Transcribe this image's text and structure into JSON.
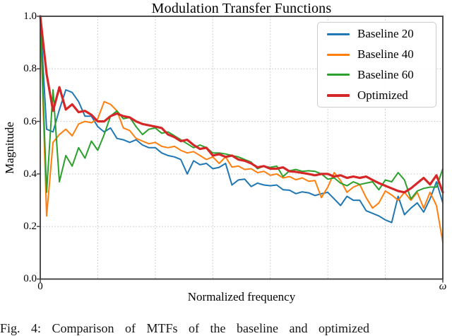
{
  "figure": {
    "title": "Modulation Transfer Functions",
    "xlabel": "Normalized frequency",
    "ylabel": "Magnitude",
    "caption": "Fig. 4: Comparison of MTFs of the baseline and optimized"
  },
  "axes": {
    "y_tick_labels": [
      "1.0",
      "0.8",
      "0.6",
      "0.4",
      "0.2",
      "0.0"
    ],
    "x_tick_labels": [
      "0",
      "ω"
    ]
  },
  "style_colors": {
    "background": "#ffffff",
    "spine": "#3b3b3b",
    "grid": "#c3c3c3",
    "text": "#000000",
    "legend_border": "#cccccc"
  },
  "chart_data": {
    "type": "line",
    "title": "Modulation Transfer Functions",
    "xlabel": "Normalized frequency",
    "ylabel": "Magnitude",
    "ylim": [
      0.0,
      1.0
    ],
    "y_ticks": [
      0.0,
      0.2,
      0.4,
      0.6,
      0.8,
      1.0
    ],
    "x_axis": {
      "min_label": "0",
      "max_label": "ω",
      "gridline_divisions": 7,
      "description": "64 evenly spaced normalized-frequency samples from 0 to ω"
    },
    "grid": "dotted",
    "legend_position": "upper right",
    "series": [
      {
        "name": "Baseline 20",
        "color": "#1f77b4",
        "line_width": 2,
        "values": [
          1.0,
          0.57,
          0.56,
          0.645,
          0.72,
          0.71,
          0.675,
          0.62,
          0.62,
          0.58,
          0.56,
          0.575,
          0.535,
          0.53,
          0.52,
          0.53,
          0.51,
          0.5,
          0.5,
          0.48,
          0.47,
          0.465,
          0.455,
          0.4,
          0.45,
          0.435,
          0.44,
          0.42,
          0.425,
          0.44,
          0.358,
          0.377,
          0.38,
          0.352,
          0.365,
          0.358,
          0.355,
          0.358,
          0.34,
          0.338,
          0.325,
          0.332,
          0.328,
          0.318,
          0.325,
          0.33,
          0.305,
          0.28,
          0.315,
          0.3,
          0.3,
          0.26,
          0.25,
          0.24,
          0.225,
          0.215,
          0.315,
          0.245,
          0.27,
          0.29,
          0.255,
          0.305,
          0.37,
          0.29
        ]
      },
      {
        "name": "Baseline 40",
        "color": "#ff7f0e",
        "line_width": 2,
        "values": [
          1.0,
          0.24,
          0.52,
          0.55,
          0.57,
          0.545,
          0.59,
          0.6,
          0.595,
          0.61,
          0.675,
          0.665,
          0.64,
          0.575,
          0.565,
          0.535,
          0.525,
          0.515,
          0.52,
          0.505,
          0.5,
          0.505,
          0.49,
          0.48,
          0.485,
          0.47,
          0.455,
          0.465,
          0.44,
          0.465,
          0.426,
          0.43,
          0.417,
          0.42,
          0.405,
          0.41,
          0.395,
          0.4,
          0.385,
          0.39,
          0.378,
          0.385,
          0.372,
          0.375,
          0.31,
          0.35,
          0.405,
          0.375,
          0.33,
          0.35,
          0.36,
          0.31,
          0.27,
          0.29,
          0.335,
          0.32,
          0.3,
          0.33,
          0.3,
          0.33,
          0.27,
          0.33,
          0.28,
          0.14
        ]
      },
      {
        "name": "Baseline 60",
        "color": "#2ca02c",
        "line_width": 2,
        "values": [
          1.0,
          0.33,
          0.72,
          0.37,
          0.47,
          0.43,
          0.5,
          0.46,
          0.525,
          0.49,
          0.55,
          0.62,
          0.64,
          0.61,
          0.615,
          0.58,
          0.55,
          0.57,
          0.575,
          0.555,
          0.56,
          0.545,
          0.53,
          0.515,
          0.5,
          0.51,
          0.5,
          0.48,
          0.48,
          0.476,
          0.47,
          0.465,
          0.455,
          0.445,
          0.42,
          0.43,
          0.425,
          0.43,
          0.39,
          0.412,
          0.417,
          0.41,
          0.412,
          0.41,
          0.4,
          0.38,
          0.385,
          0.365,
          0.355,
          0.37,
          0.36,
          0.365,
          0.37,
          0.34,
          0.377,
          0.37,
          0.405,
          0.377,
          0.305,
          0.335,
          0.345,
          0.35,
          0.35,
          0.42
        ]
      },
      {
        "name": "Optimized",
        "color": "#d62728",
        "line_width": 3.2,
        "values": [
          1.0,
          0.78,
          0.64,
          0.73,
          0.645,
          0.665,
          0.635,
          0.64,
          0.625,
          0.6,
          0.6,
          0.62,
          0.63,
          0.62,
          0.615,
          0.6,
          0.59,
          0.585,
          0.58,
          0.575,
          0.55,
          0.54,
          0.525,
          0.53,
          0.51,
          0.495,
          0.5,
          0.47,
          0.475,
          0.465,
          0.47,
          0.455,
          0.45,
          0.44,
          0.425,
          0.43,
          0.42,
          0.42,
          0.425,
          0.41,
          0.408,
          0.404,
          0.4,
          0.395,
          0.4,
          0.4,
          0.39,
          0.395,
          0.385,
          0.39,
          0.385,
          0.39,
          0.377,
          0.365,
          0.355,
          0.345,
          0.335,
          0.33,
          0.345,
          0.365,
          0.385,
          0.36,
          0.395,
          0.33
        ]
      }
    ]
  }
}
